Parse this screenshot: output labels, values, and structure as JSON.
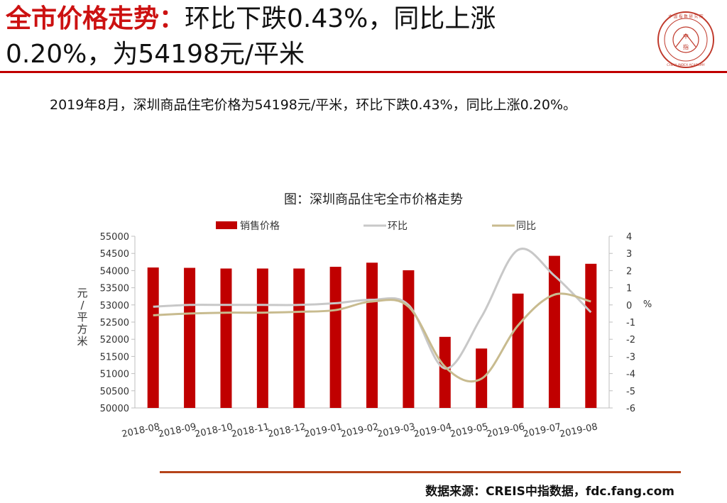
{
  "headline": {
    "key": "全市价格走势：",
    "line1_rest": "环比下跌0.43%，同比上涨",
    "line2": "0.20%，为54198元/平米"
  },
  "summary": "2019年8月，深圳商品住宅价格为54198元/平米，环比下跌0.43%，同比上涨0.20%。",
  "source": "数据来源：CREIS中指数据，fdc.fang.com",
  "logo": {
    "icon": "china-index-academy-seal",
    "ring_text": "CHINA INDEX ACADEMY",
    "center_top": "中",
    "center_bottom": "指",
    "top_text": "中 国 指 数 研 究 院",
    "color": "#c0392b"
  },
  "chart_data": {
    "type": "bar",
    "title": "图：深圳商品住宅全市价格走势",
    "categories": [
      "2018-08",
      "2018-09",
      "2018-10",
      "2018-11",
      "2018-12",
      "2019-01",
      "2019-02",
      "2019-03",
      "2019-04",
      "2019-05",
      "2019-06",
      "2019-07",
      "2019-08"
    ],
    "series": [
      {
        "name": "销售价格",
        "type": "bar",
        "axis": "left",
        "color": "#c00000",
        "values": [
          54090,
          54080,
          54060,
          54060,
          54060,
          54110,
          54230,
          54010,
          52070,
          51730,
          53330,
          54430,
          54198
        ]
      },
      {
        "name": "环比",
        "type": "line",
        "axis": "right",
        "color": "#c8c8c8",
        "values": [
          -0.1,
          0.0,
          0.0,
          0.0,
          0.0,
          0.1,
          0.3,
          0.0,
          -3.7,
          -0.7,
          3.2,
          1.7,
          -0.43
        ]
      },
      {
        "name": "同比",
        "type": "line",
        "axis": "right",
        "color": "#c8bb8f",
        "values": [
          -0.6,
          -0.5,
          -0.45,
          -0.45,
          -0.4,
          -0.3,
          0.2,
          -0.1,
          -3.6,
          -4.3,
          -1.2,
          0.6,
          0.2
        ]
      }
    ],
    "ylabel": "元/平方米",
    "ylim": [
      50000,
      55000
    ],
    "y_ticks": [
      50000,
      50500,
      51000,
      51500,
      52000,
      52500,
      53000,
      53500,
      54000,
      54500,
      55000
    ],
    "y2label": "%",
    "y2lim": [
      -6,
      4
    ],
    "y2_ticks": [
      -6,
      -5,
      -4,
      -3,
      -2,
      -1,
      0,
      1,
      2,
      3,
      4
    ],
    "legend": "top",
    "grid": false
  }
}
